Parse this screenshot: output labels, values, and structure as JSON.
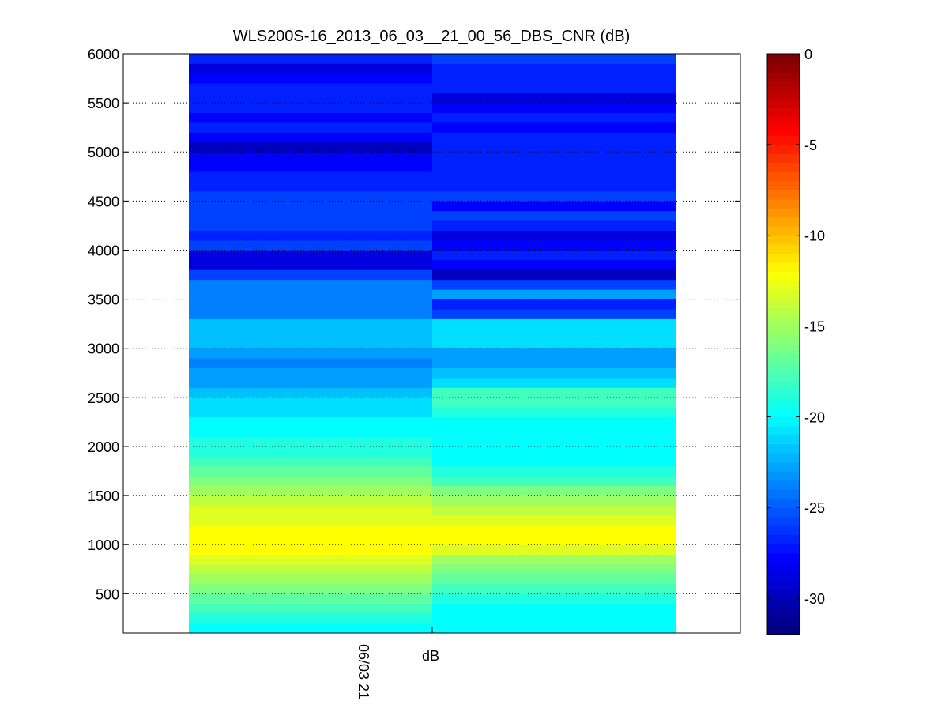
{
  "chart_data": {
    "type": "heatmap",
    "title": "WLS200S-16_2013_06_03__21_00_56_DBS_CNR (dB)",
    "xlabel": "dB",
    "x_tick_labels": [
      "06/03 21"
    ],
    "y_ticks": [
      500,
      1000,
      1500,
      2000,
      2500,
      3000,
      3500,
      4000,
      4500,
      5000,
      5500,
      6000
    ],
    "ylim": [
      100,
      6000
    ],
    "grid": true,
    "colormap": "jet",
    "colorbar": {
      "range": [
        -32,
        0
      ],
      "ticks": [
        0,
        -5,
        -10,
        -15,
        -20,
        -25,
        -30
      ]
    },
    "columns": [
      {
        "range_gate_start_m": [
          100,
          200,
          300,
          400,
          500,
          600,
          700,
          800,
          900,
          1000,
          1100,
          1200,
          1300,
          1400,
          1500,
          1600,
          1700,
          1800,
          1900,
          2000,
          2100,
          2200,
          2300,
          2400,
          2500,
          2600,
          2700,
          2800,
          2900,
          3000,
          3100,
          3200,
          3300,
          3400,
          3500,
          3600,
          3700,
          3800,
          3900,
          4000,
          4100,
          4200,
          4300,
          4400,
          4500,
          4600,
          4700,
          4800,
          4900,
          5000,
          5100,
          5200,
          5300,
          5400,
          5500,
          5600,
          5700,
          5800,
          5900,
          6000
        ],
        "cnr_db": [
          -20,
          -19,
          -18,
          -17,
          -16,
          -15,
          -14,
          -13,
          -12,
          -12,
          -12,
          -13,
          -13,
          -14,
          -15,
          -16,
          -17,
          -18,
          -19,
          -19,
          -20,
          -20,
          -21,
          -21,
          -22,
          -23,
          -23,
          -24,
          -23,
          -22,
          -22,
          -22,
          -24,
          -24,
          -24,
          -24,
          -26,
          -29,
          -29,
          -26,
          -27,
          -26,
          -26,
          -26,
          -26,
          -27,
          -27,
          -28,
          -28,
          -30,
          -28,
          -27,
          -28,
          -27,
          -27,
          -27,
          -28,
          -29,
          -27,
          -28
        ],
        "cnr_db_full": [
          -20,
          -19,
          -18,
          -17,
          -16,
          -15,
          -14,
          -13,
          -12,
          -12,
          -12,
          -13,
          -13,
          -14,
          -15,
          -16,
          -17,
          -18,
          -19,
          -19,
          -20,
          -20,
          -21,
          -21,
          -22,
          -23,
          -23,
          -24,
          -23,
          -22,
          -22,
          -22,
          -24,
          -24,
          -24,
          -24,
          -26,
          -29,
          -29,
          -26,
          -27,
          -26,
          -26,
          -26,
          -26,
          -27,
          -27,
          -28,
          -28,
          -30,
          -28,
          -27,
          -28,
          -27,
          -27,
          -27,
          -28,
          -29,
          -27,
          -28
        ]
      }
    ]
  }
}
